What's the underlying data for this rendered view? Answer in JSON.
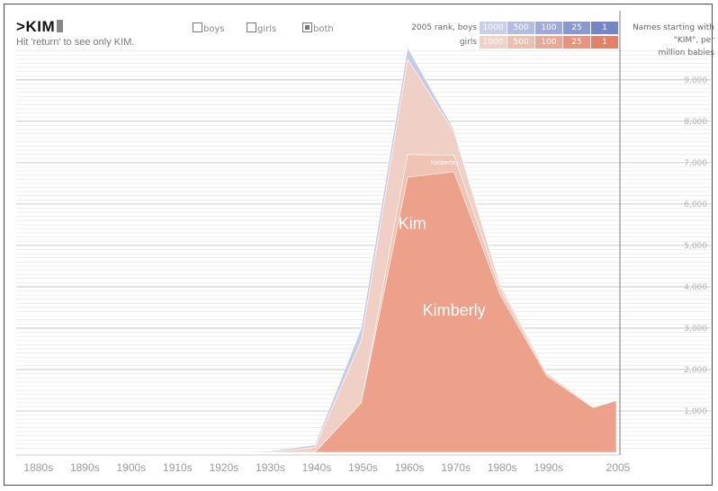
{
  "search": {
    "prompt": ">",
    "query": "KIM",
    "hint": "Hit 'return' to see only KIM."
  },
  "filters": [
    {
      "label": "boys",
      "checked": false
    },
    {
      "label": "girls",
      "checked": false
    },
    {
      "label": "both",
      "checked": true
    }
  ],
  "rank_legend": {
    "boys_label": "2005 rank, boys",
    "girls_label": "girls",
    "ranks": [
      "1000",
      "500",
      "100",
      "25",
      "1"
    ],
    "boys_colors": [
      "#c9cfe6",
      "#b4bde0",
      "#9eaad9",
      "#8a98d2",
      "#7485c8"
    ],
    "girls_colors": [
      "#f1d1c5",
      "#ecc0b0",
      "#e9a999",
      "#e6947f",
      "#e3806a"
    ]
  },
  "metric_note": [
    "Names starting with",
    "\"KIM\", per",
    "million babies"
  ],
  "chart_data": {
    "type": "area",
    "stacked": true,
    "x": [
      1880,
      1890,
      1900,
      1910,
      1920,
      1930,
      1940,
      1950,
      1960,
      1970,
      1980,
      1990,
      2000,
      2005
    ],
    "x_tick_labels": [
      "1880s",
      "1890s",
      "1900s",
      "1910s",
      "1920s",
      "1930s",
      "1940s",
      "1950s",
      "1960s",
      "1970s",
      "1980s",
      "1990s",
      "2005"
    ],
    "x_tick_values": [
      1880,
      1890,
      1900,
      1910,
      1920,
      1930,
      1940,
      1950,
      1960,
      1970,
      1980,
      1990,
      2005
    ],
    "ylim": [
      0,
      9800
    ],
    "y_ticks": [
      1000,
      2000,
      3000,
      4000,
      5000,
      6000,
      7000,
      8000,
      9000
    ],
    "y_tick_labels": [
      "1,000",
      "2,000",
      "3,000",
      "4,000",
      "5,000",
      "6,000",
      "7,000",
      "8,000",
      "9,000"
    ],
    "grid": true,
    "series": [
      {
        "name": "Kimberly",
        "sex": "girl",
        "color": "#eda08a",
        "values": [
          0,
          0,
          0,
          0,
          0,
          0,
          0,
          1200,
          6650,
          6780,
          3800,
          1850,
          1080,
          1250
        ]
      },
      {
        "name": "Kimberley",
        "sex": "girl",
        "color": "#f0c3b4",
        "values": [
          0,
          0,
          0,
          0,
          0,
          0,
          0,
          0,
          550,
          400,
          130,
          50,
          20,
          10
        ]
      },
      {
        "name": "Kim",
        "sex": "girl",
        "color": "#f0d0c6",
        "values": [
          0,
          0,
          0,
          0,
          0,
          0,
          120,
          1500,
          2300,
          560,
          110,
          30,
          10,
          5
        ]
      },
      {
        "name": "",
        "sex": "boy",
        "color": "#c6cae3",
        "values": [
          0,
          0,
          0,
          0,
          0,
          25,
          60,
          300,
          280,
          60,
          20,
          10,
          10,
          10
        ]
      }
    ],
    "labels": [
      {
        "text": "Kim",
        "x": 1961,
        "y": 5400,
        "size": 18
      },
      {
        "text": "Kimberly",
        "x": 1970,
        "y": 3300,
        "size": 18
      },
      {
        "text": "Kimberley",
        "x": 1968,
        "y": 6950,
        "size": 7
      }
    ]
  }
}
